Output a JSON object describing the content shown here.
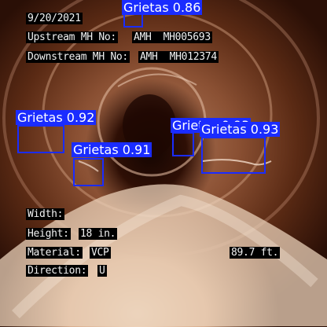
{
  "overlay": {
    "date": "9/20/2021",
    "upstream_label": "Upstream MH No:",
    "upstream_value": "AMH  MH005693",
    "downstream_label": "Downstream MH No:",
    "downstream_value": "AMH  MH012374",
    "width_label": "Width:",
    "height_label": "Height:",
    "height_value": "18 in.",
    "material_label": "Material:",
    "material_value": "VCP",
    "direction_label": "Direction:",
    "direction_value": "U",
    "distance": "89.7 ft."
  },
  "detections": [
    {
      "label": "Grietas 0.86",
      "class": "Grietas",
      "score": 0.86
    },
    {
      "label": "Grietas 0.92",
      "class": "Grietas",
      "score": 0.92
    },
    {
      "label": "Grietas 0.91",
      "class": "Grietas",
      "score": 0.91
    },
    {
      "label": "Grietas 0.93",
      "class": "Grietas",
      "score": 0.93
    },
    {
      "label": "Grietas 0.93",
      "class": "Grietas",
      "score": 0.93
    }
  ],
  "colors": {
    "box": "#1a2cff",
    "label_text": "#ffffff",
    "osd_bg": "#000000",
    "osd_text": "#f2f2f2"
  }
}
